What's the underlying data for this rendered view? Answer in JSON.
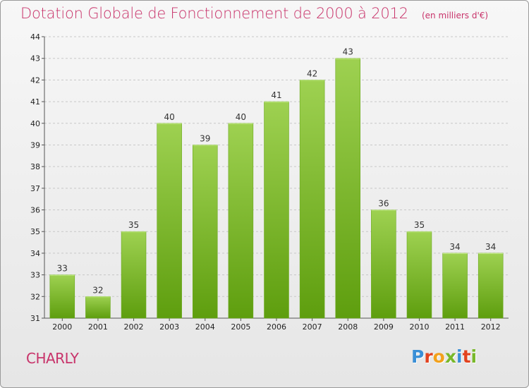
{
  "header": {
    "title": "Dotation Globale de Fonctionnement de 2000 à 2012",
    "unit": "(en milliers d'€)"
  },
  "footer": {
    "place": "CHARLY",
    "logo_letters": [
      "P",
      "r",
      "o",
      "x",
      "i",
      "t",
      "i"
    ],
    "logo_colors": [
      "#3a8fd6",
      "#e2421f",
      "#f2a11c",
      "#78b82a",
      "#3a8fd6",
      "#e2421f",
      "#78b82a"
    ]
  },
  "colors": {
    "title": "#c8336a",
    "bar_light": "#9ed151",
    "bar_dark": "#5e9e0e",
    "grid": "#c8c8c8"
  },
  "chart_data": {
    "type": "bar",
    "title": "Dotation Globale de Fonctionnement de 2000 à 2012",
    "subtitle": "(en milliers d'€)",
    "xlabel": "",
    "ylabel": "",
    "categories": [
      "2000",
      "2001",
      "2002",
      "2003",
      "2004",
      "2005",
      "2006",
      "2007",
      "2008",
      "2009",
      "2010",
      "2011",
      "2012"
    ],
    "values": [
      33,
      32,
      35,
      40,
      39,
      40,
      41,
      42,
      43,
      36,
      35,
      34,
      34
    ],
    "ylim": [
      31,
      44
    ],
    "yticks": [
      31,
      32,
      33,
      34,
      35,
      36,
      37,
      38,
      39,
      40,
      41,
      42,
      43,
      44
    ],
    "grid": "horizontal dashed"
  }
}
